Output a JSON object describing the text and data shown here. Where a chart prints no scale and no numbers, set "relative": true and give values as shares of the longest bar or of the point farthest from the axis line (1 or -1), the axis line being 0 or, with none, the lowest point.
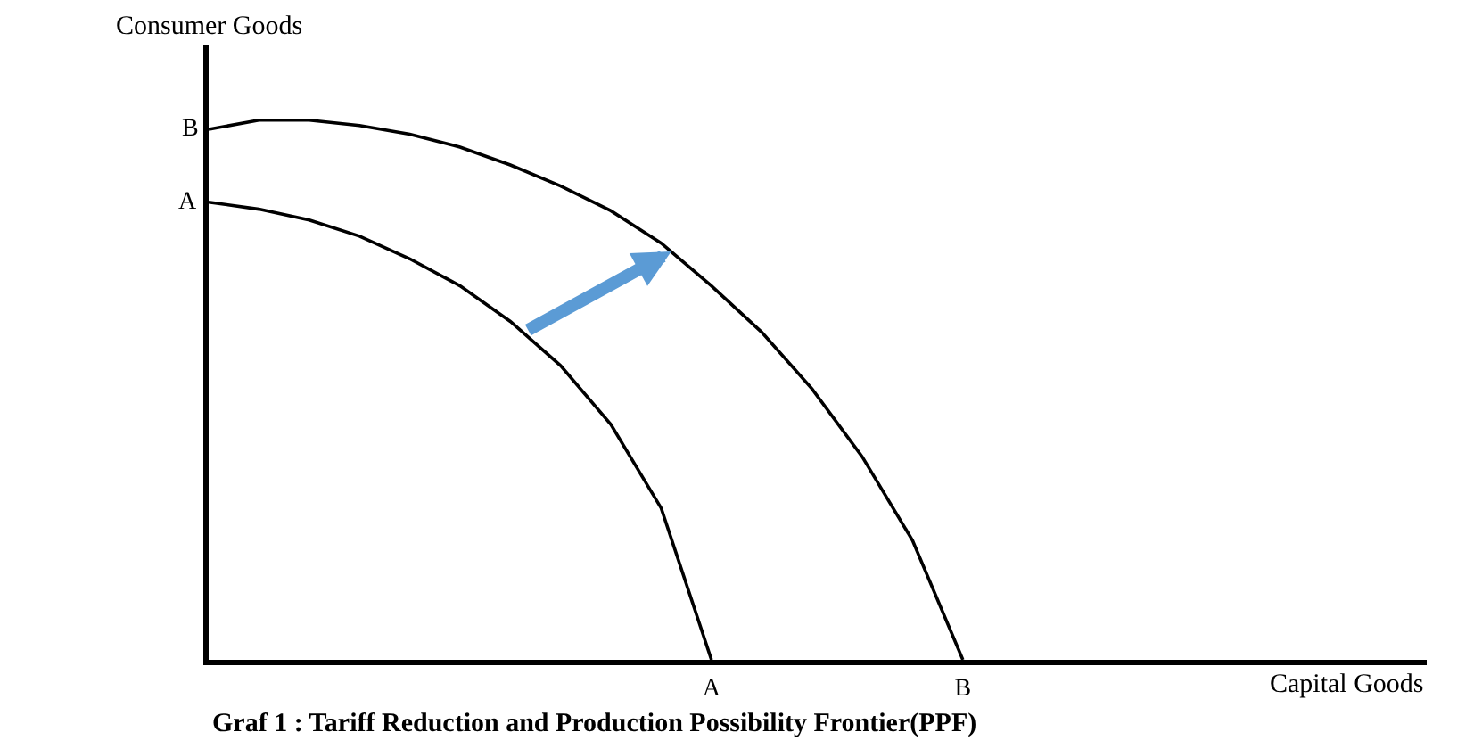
{
  "chart_data": {
    "type": "line",
    "relative": true,
    "title": "Graf 1 : Tariff Reduction and Production Possibility Frontier(PPF)",
    "ylabel": "Consumer Goods",
    "marker": "none",
    "line_style": "solid",
    "categories": [
      null,
      null,
      null,
      null,
      null,
      null,
      null,
      null,
      null,
      null,
      "A",
      null,
      null,
      null,
      null,
      "B"
    ],
    "series": [
      {
        "color": "#000000",
        "values": [
          0.848,
          0.835,
          0.815,
          0.785,
          0.743,
          0.693,
          0.627,
          0.545,
          0.436,
          0.281,
          0,
          null,
          null,
          null,
          null,
          null
        ]
      },
      {
        "color": "#000000",
        "values": [
          0.983,
          1,
          1,
          0.99,
          0.974,
          0.95,
          0.917,
          0.878,
          0.832,
          0.772,
          0.693,
          0.607,
          0.502,
          0.376,
          0.221,
          0
        ]
      }
    ],
    "annotations": [
      "A",
      "B",
      "Capital Goods"
    ]
  }
}
